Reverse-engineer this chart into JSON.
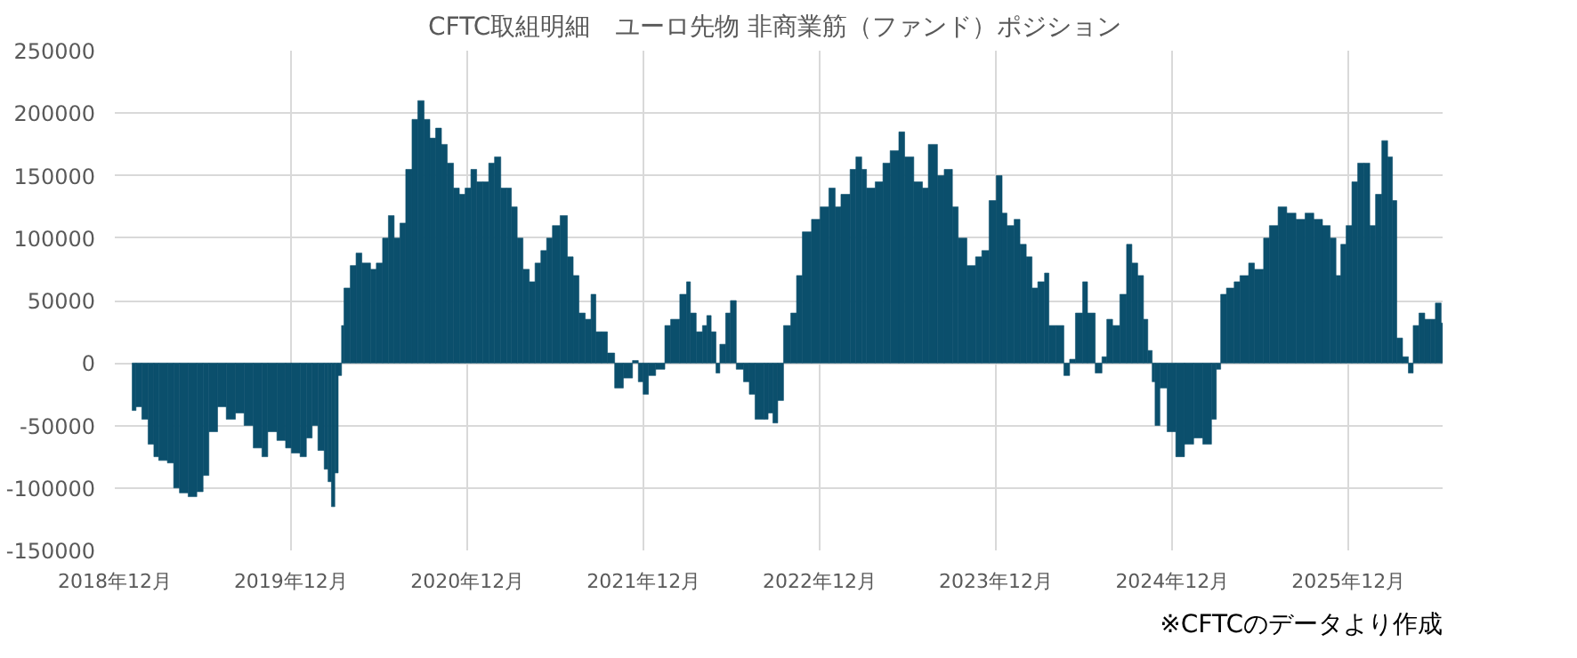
{
  "chart_data": {
    "type": "bar",
    "title": "CFTC取組明細　ユーロ先物  非商業筋（ファンド）ポジション",
    "annotations": [
      "※CFTCのデータより作成"
    ],
    "color": "#0b4f6c",
    "grid": true,
    "xlim": [
      "2018-12-01",
      "2026-06-14"
    ],
    "xticks": [
      {
        "value": "2018-12-01",
        "label": "2018年12月"
      },
      {
        "value": "2019-12-01",
        "label": "2019年12月"
      },
      {
        "value": "2020-12-01",
        "label": "2020年12月"
      },
      {
        "value": "2021-12-01",
        "label": "2021年12月"
      },
      {
        "value": "2022-12-01",
        "label": "2022年12月"
      },
      {
        "value": "2023-12-01",
        "label": "2023年12月"
      },
      {
        "value": "2024-12-01",
        "label": "2024年12月"
      },
      {
        "value": "2025-12-01",
        "label": "2025年12月"
      }
    ],
    "ylim": [
      -150000,
      250000
    ],
    "yticks": [
      -150000,
      -100000,
      -50000,
      0,
      50000,
      100000,
      150000,
      200000,
      250000
    ],
    "x": [
      "2019-01-06",
      "2019-01-14",
      "2019-01-26",
      "2019-02-08",
      "2019-02-20",
      "2019-03-02",
      "2019-03-20",
      "2019-04-02",
      "2019-04-14",
      "2019-05-02",
      "2019-05-20",
      "2019-06-02",
      "2019-06-14",
      "2019-07-02",
      "2019-07-20",
      "2019-08-08",
      "2019-08-26",
      "2019-09-14",
      "2019-10-02",
      "2019-10-14",
      "2019-11-02",
      "2019-11-20",
      "2019-12-02",
      "2019-12-20",
      "2020-01-02",
      "2020-01-14",
      "2020-01-26",
      "2020-02-08",
      "2020-02-16",
      "2020-02-23",
      "2020-03-01",
      "2020-03-08",
      "2020-03-15",
      "2020-03-20",
      "2020-04-02",
      "2020-04-14",
      "2020-04-26",
      "2020-05-14",
      "2020-05-26",
      "2020-06-08",
      "2020-06-20",
      "2020-07-02",
      "2020-07-14",
      "2020-07-26",
      "2020-08-08",
      "2020-08-20",
      "2020-09-02",
      "2020-09-14",
      "2020-09-26",
      "2020-10-08",
      "2020-10-20",
      "2020-11-02",
      "2020-11-14",
      "2020-11-26",
      "2020-12-08",
      "2020-12-20",
      "2021-01-02",
      "2021-01-14",
      "2021-01-26",
      "2021-02-08",
      "2021-02-20",
      "2021-03-02",
      "2021-03-14",
      "2021-03-26",
      "2021-04-08",
      "2021-04-20",
      "2021-05-02",
      "2021-05-14",
      "2021-05-26",
      "2021-06-11",
      "2021-06-26",
      "2021-07-08",
      "2021-07-20",
      "2021-08-02",
      "2021-08-14",
      "2021-08-24",
      "2021-09-05",
      "2021-09-17",
      "2021-10-02",
      "2021-10-20",
      "2021-11-08",
      "2021-11-20",
      "2021-11-30",
      "2021-12-11",
      "2021-12-26",
      "2022-01-14",
      "2022-01-26",
      "2022-02-14",
      "2022-02-28",
      "2022-03-08",
      "2022-03-20",
      "2022-04-02",
      "2022-04-11",
      "2022-04-20",
      "2022-04-30",
      "2022-05-08",
      "2022-05-20",
      "2022-05-30",
      "2022-06-11",
      "2022-06-26",
      "2022-07-08",
      "2022-07-20",
      "2022-08-08",
      "2022-08-16",
      "2022-08-26",
      "2022-09-05",
      "2022-09-17",
      "2022-10-02",
      "2022-10-14",
      "2022-10-26",
      "2022-11-14",
      "2022-12-02",
      "2022-12-20",
      "2023-01-02",
      "2023-01-14",
      "2023-02-02",
      "2023-02-14",
      "2023-02-26",
      "2023-03-08",
      "2023-03-26",
      "2023-04-11",
      "2023-04-26",
      "2023-05-14",
      "2023-05-26",
      "2023-06-14",
      "2023-07-02",
      "2023-07-14",
      "2023-08-02",
      "2023-08-16",
      "2023-09-02",
      "2023-09-14",
      "2023-10-02",
      "2023-10-20",
      "2023-11-02",
      "2023-11-17",
      "2023-12-02",
      "2023-12-14",
      "2023-12-24",
      "2024-01-08",
      "2024-01-20",
      "2024-02-02",
      "2024-02-14",
      "2024-02-26",
      "2024-03-11",
      "2024-03-20",
      "2024-04-04",
      "2024-04-20",
      "2024-05-02",
      "2024-05-14",
      "2024-05-29",
      "2024-06-08",
      "2024-06-24",
      "2024-07-08",
      "2024-07-18",
      "2024-07-30",
      "2024-08-14",
      "2024-08-28",
      "2024-09-08",
      "2024-09-20",
      "2024-10-02",
      "2024-10-11",
      "2024-10-20",
      "2024-10-26",
      "2024-11-05",
      "2024-11-20",
      "2024-12-08",
      "2024-12-26",
      "2025-01-14",
      "2025-02-02",
      "2025-02-20",
      "2025-03-02",
      "2025-03-11",
      "2025-03-23",
      "2025-04-08",
      "2025-04-20",
      "2025-05-08",
      "2025-05-20",
      "2025-06-08",
      "2025-06-20",
      "2025-07-08",
      "2025-07-26",
      "2025-08-14",
      "2025-09-02",
      "2025-09-20",
      "2025-10-08",
      "2025-10-24",
      "2025-11-05",
      "2025-11-15",
      "2025-11-26",
      "2025-12-08",
      "2025-12-20",
      "2026-01-02",
      "2026-01-14",
      "2026-01-26",
      "2026-02-08",
      "2026-02-20",
      "2026-03-02",
      "2026-03-11",
      "2026-03-23",
      "2026-04-04",
      "2026-04-14",
      "2026-04-26",
      "2026-05-08",
      "2026-05-20",
      "2026-05-30",
      "2026-06-11"
    ],
    "values": [
      -38000,
      -35000,
      -45000,
      -65000,
      -75000,
      -78000,
      -80000,
      -100000,
      -104000,
      -107000,
      -103000,
      -90000,
      -55000,
      -35000,
      -45000,
      -40000,
      -50000,
      -68000,
      -75000,
      -55000,
      -62000,
      -68000,
      -72000,
      -75000,
      -60000,
      -50000,
      -70000,
      -85000,
      -95000,
      -115000,
      -88000,
      -10000,
      30000,
      60000,
      78000,
      88000,
      80000,
      75000,
      80000,
      100000,
      118000,
      100000,
      112000,
      155000,
      195000,
      210000,
      195000,
      180000,
      188000,
      175000,
      160000,
      140000,
      135000,
      140000,
      155000,
      145000,
      145000,
      160000,
      165000,
      140000,
      140000,
      125000,
      100000,
      75000,
      65000,
      80000,
      90000,
      100000,
      110000,
      118000,
      85000,
      70000,
      40000,
      35000,
      55000,
      25000,
      25000,
      8000,
      -20000,
      -12000,
      2000,
      -15000,
      -25000,
      -10000,
      -5000,
      30000,
      35000,
      55000,
      65000,
      40000,
      25000,
      30000,
      38000,
      25000,
      -8000,
      15000,
      40000,
      50000,
      -5000,
      -15000,
      -25000,
      -45000,
      -45000,
      -40000,
      -48000,
      -30000,
      30000,
      40000,
      70000,
      105000,
      115000,
      125000,
      140000,
      125000,
      135000,
      155000,
      165000,
      155000,
      140000,
      145000,
      160000,
      170000,
      185000,
      165000,
      145000,
      140000,
      175000,
      150000,
      155000,
      125000,
      100000,
      78000,
      85000,
      90000,
      130000,
      150000,
      120000,
      110000,
      115000,
      95000,
      85000,
      60000,
      65000,
      72000,
      30000,
      30000,
      -10000,
      3000,
      40000,
      65000,
      40000,
      -8000,
      5000,
      35000,
      30000,
      55000,
      95000,
      80000,
      70000,
      35000,
      10000,
      -15000,
      -50000,
      -20000,
      -55000,
      -75000,
      -65000,
      -60000,
      -65000,
      -45000,
      -5000,
      55000,
      60000,
      65000,
      70000,
      80000,
      75000,
      100000,
      110000,
      125000,
      120000,
      115000,
      120000,
      115000,
      110000,
      100000,
      70000,
      95000,
      110000,
      145000,
      160000,
      160000,
      110000,
      135000,
      178000,
      165000,
      130000,
      20000,
      5000,
      -8000,
      30000,
      40000,
      35000,
      35000,
      48000,
      32000
    ]
  }
}
